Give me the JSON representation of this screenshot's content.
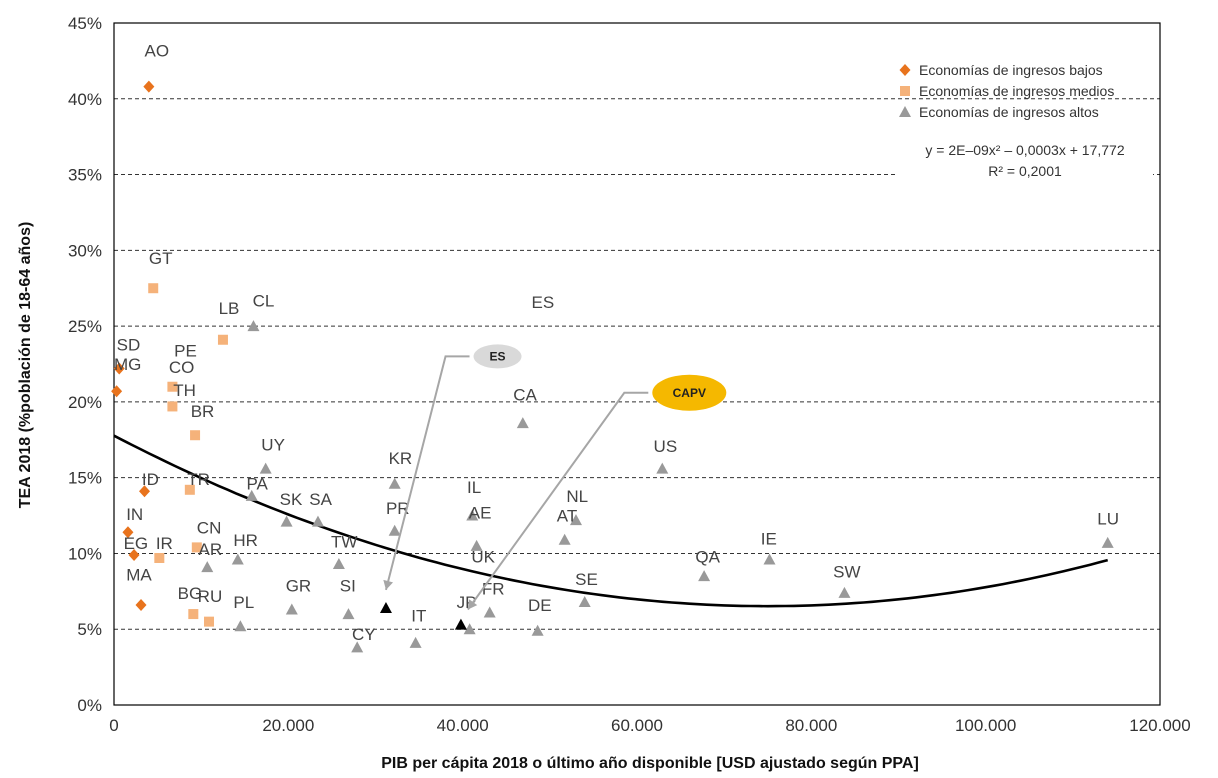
{
  "chart_data": {
    "type": "scatter",
    "xlabel": "PIB per cápita 2018 o último año disponible [USD ajustado según PPA]",
    "ylabel": "TEA 2018 (%población de 18-64 años)",
    "xlim": [
      0,
      120000
    ],
    "ylim": [
      0,
      45
    ],
    "x_ticks": [
      "0",
      "20.000",
      "40.000",
      "60.000",
      "80.000",
      "100.000",
      "120.000"
    ],
    "y_ticks": [
      "0%",
      "5%",
      "10%",
      "15%",
      "20%",
      "25%",
      "30%",
      "35%",
      "40%",
      "45%"
    ],
    "grid": "horizontal dashed",
    "legend_position": "top-right",
    "legend": [
      {
        "label": "Economías de ingresos bajos",
        "marker": "diamond",
        "color": "#E8731D"
      },
      {
        "label": "Economías de ingresos medios",
        "marker": "square",
        "color": "#F5B27A"
      },
      {
        "label": "Economías de ingresos altos",
        "marker": "triangle",
        "color": "#999999"
      }
    ],
    "trendline": {
      "equation": "y = 2E–09x² – 0,0003x + 17,772",
      "r2": "R² = 0,2001",
      "a": 2e-09,
      "b": -0.0003,
      "c": 17.772
    },
    "series": [
      {
        "name": "Economías de ingresos bajos",
        "marker": "diamond",
        "color": "#E8731D",
        "points": [
          {
            "x": 4000,
            "y": 40.8
          },
          {
            "x": 600,
            "y": 22.2
          },
          {
            "x": 300,
            "y": 20.7
          },
          {
            "x": 3500,
            "y": 14.1
          },
          {
            "x": 1600,
            "y": 11.4
          },
          {
            "x": 2300,
            "y": 9.9
          },
          {
            "x": 3100,
            "y": 6.6
          }
        ]
      },
      {
        "name": "Economías de ingresos medios",
        "marker": "square",
        "color": "#F5B27A",
        "points": [
          {
            "x": 4500,
            "y": 27.5
          },
          {
            "x": 12500,
            "y": 24.1
          },
          {
            "x": 6700,
            "y": 21.0
          },
          {
            "x": 6700,
            "y": 19.7
          },
          {
            "x": 9300,
            "y": 17.8
          },
          {
            "x": 8700,
            "y": 14.2
          },
          {
            "x": 5200,
            "y": 9.7
          },
          {
            "x": 9500,
            "y": 10.4
          },
          {
            "x": 9100,
            "y": 6.0
          },
          {
            "x": 10900,
            "y": 5.5
          }
        ]
      },
      {
        "name": "Economías de ingresos altos",
        "marker": "triangle",
        "color": "#999999",
        "points": [
          {
            "x": 16000,
            "y": 25.0
          },
          {
            "x": 17400,
            "y": 15.6
          },
          {
            "x": 15800,
            "y": 13.8
          },
          {
            "x": 19800,
            "y": 12.1
          },
          {
            "x": 23400,
            "y": 12.1
          },
          {
            "x": 14200,
            "y": 9.6
          },
          {
            "x": 10700,
            "y": 9.1
          },
          {
            "x": 14500,
            "y": 5.2
          },
          {
            "x": 20400,
            "y": 6.3
          },
          {
            "x": 25800,
            "y": 9.3
          },
          {
            "x": 26900,
            "y": 6.0
          },
          {
            "x": 27900,
            "y": 3.8
          },
          {
            "x": 32200,
            "y": 14.6
          },
          {
            "x": 32200,
            "y": 11.5
          },
          {
            "x": 34600,
            "y": 4.1
          },
          {
            "x": 41100,
            "y": 12.5
          },
          {
            "x": 41600,
            "y": 10.5
          },
          {
            "x": 43100,
            "y": 6.1
          },
          {
            "x": 40800,
            "y": 5.0
          },
          {
            "x": 46900,
            "y": 18.6
          },
          {
            "x": 48600,
            "y": 4.9
          },
          {
            "x": 51700,
            "y": 10.9
          },
          {
            "x": 53000,
            "y": 12.2
          },
          {
            "x": 54000,
            "y": 6.8
          },
          {
            "x": 62900,
            "y": 15.6
          },
          {
            "x": 67700,
            "y": 8.5
          },
          {
            "x": 75200,
            "y": 9.6
          },
          {
            "x": 83800,
            "y": 7.4
          },
          {
            "x": 114000,
            "y": 10.7
          }
        ]
      },
      {
        "marker": "triangle",
        "color": "#000000",
        "points": [
          {
            "x": 31200,
            "y": 6.4
          },
          {
            "x": 39800,
            "y": 5.3
          }
        ]
      }
    ],
    "point_labels": [
      {
        "text": "AO",
        "x": 3500,
        "y": 43.2
      },
      {
        "text": "GT",
        "x": 4000,
        "y": 29.5
      },
      {
        "text": "LB",
        "x": 12000,
        "y": 26.2
      },
      {
        "text": "CL",
        "x": 15900,
        "y": 26.7
      },
      {
        "text": "ES",
        "x": 47900,
        "y": 26.6
      },
      {
        "text": "SD",
        "x": 300,
        "y": 23.8
      },
      {
        "text": "PE",
        "x": 6900,
        "y": 23.4
      },
      {
        "text": "MG",
        "x": 0,
        "y": 22.5
      },
      {
        "text": "CO",
        "x": 6300,
        "y": 22.3
      },
      {
        "text": "TH",
        "x": 6800,
        "y": 20.8
      },
      {
        "text": "BR",
        "x": 8800,
        "y": 19.4
      },
      {
        "text": "CA",
        "x": 45800,
        "y": 20.5
      },
      {
        "text": "US",
        "x": 61900,
        "y": 17.1
      },
      {
        "text": "UY",
        "x": 16900,
        "y": 17.2
      },
      {
        "text": "KR",
        "x": 31500,
        "y": 16.3
      },
      {
        "text": "ID",
        "x": 3200,
        "y": 14.9
      },
      {
        "text": "TR",
        "x": 8400,
        "y": 14.9
      },
      {
        "text": "PA",
        "x": 15200,
        "y": 14.6
      },
      {
        "text": "IL",
        "x": 40500,
        "y": 14.4
      },
      {
        "text": "NL",
        "x": 51900,
        "y": 13.8
      },
      {
        "text": "SK",
        "x": 19000,
        "y": 13.6
      },
      {
        "text": "SA",
        "x": 22400,
        "y": 13.6
      },
      {
        "text": "PR",
        "x": 31200,
        "y": 13.0
      },
      {
        "text": "IN",
        "x": 1400,
        "y": 12.6
      },
      {
        "text": "AE",
        "x": 40700,
        "y": 12.7
      },
      {
        "text": "AT",
        "x": 50800,
        "y": 12.5
      },
      {
        "text": "LU",
        "x": 112800,
        "y": 12.3
      },
      {
        "text": "CN",
        "x": 9500,
        "y": 11.7
      },
      {
        "text": "TW",
        "x": 24900,
        "y": 10.8
      },
      {
        "text": "EG",
        "x": 1100,
        "y": 10.7
      },
      {
        "text": "IR",
        "x": 4800,
        "y": 10.7
      },
      {
        "text": "HR",
        "x": 13700,
        "y": 10.9
      },
      {
        "text": "IE",
        "x": 74200,
        "y": 11.0
      },
      {
        "text": "AR",
        "x": 9700,
        "y": 10.3
      },
      {
        "text": "UK",
        "x": 41000,
        "y": 9.8
      },
      {
        "text": "QA",
        "x": 66700,
        "y": 9.8
      },
      {
        "text": "SW",
        "x": 82500,
        "y": 8.8
      },
      {
        "text": "MA",
        "x": 1400,
        "y": 8.6
      },
      {
        "text": "SE",
        "x": 52900,
        "y": 8.3
      },
      {
        "text": "GR",
        "x": 19700,
        "y": 7.9
      },
      {
        "text": "SI",
        "x": 25900,
        "y": 7.9
      },
      {
        "text": "FR",
        "x": 42200,
        "y": 7.7
      },
      {
        "text": "BG",
        "x": 7300,
        "y": 7.4
      },
      {
        "text": "RU",
        "x": 9600,
        "y": 7.2
      },
      {
        "text": "PL",
        "x": 13700,
        "y": 6.8
      },
      {
        "text": "DE",
        "x": 47500,
        "y": 6.6
      },
      {
        "text": "JP",
        "x": 39300,
        "y": 6.8
      },
      {
        "text": "IT",
        "x": 34100,
        "y": 5.9
      },
      {
        "text": "CY",
        "x": 27300,
        "y": 4.7
      }
    ],
    "callouts": [
      {
        "text": "ES",
        "color": "#D9D9D9",
        "text_color": "#222222",
        "x": 44000,
        "y": 23.0,
        "target": {
          "x": 31200,
          "y": 7.6
        }
      },
      {
        "text": "CAPV",
        "color": "#F5B800",
        "text_color": "#111111",
        "x": 66000,
        "y": 20.6,
        "target": {
          "x": 40600,
          "y": 6.3
        }
      }
    ]
  }
}
